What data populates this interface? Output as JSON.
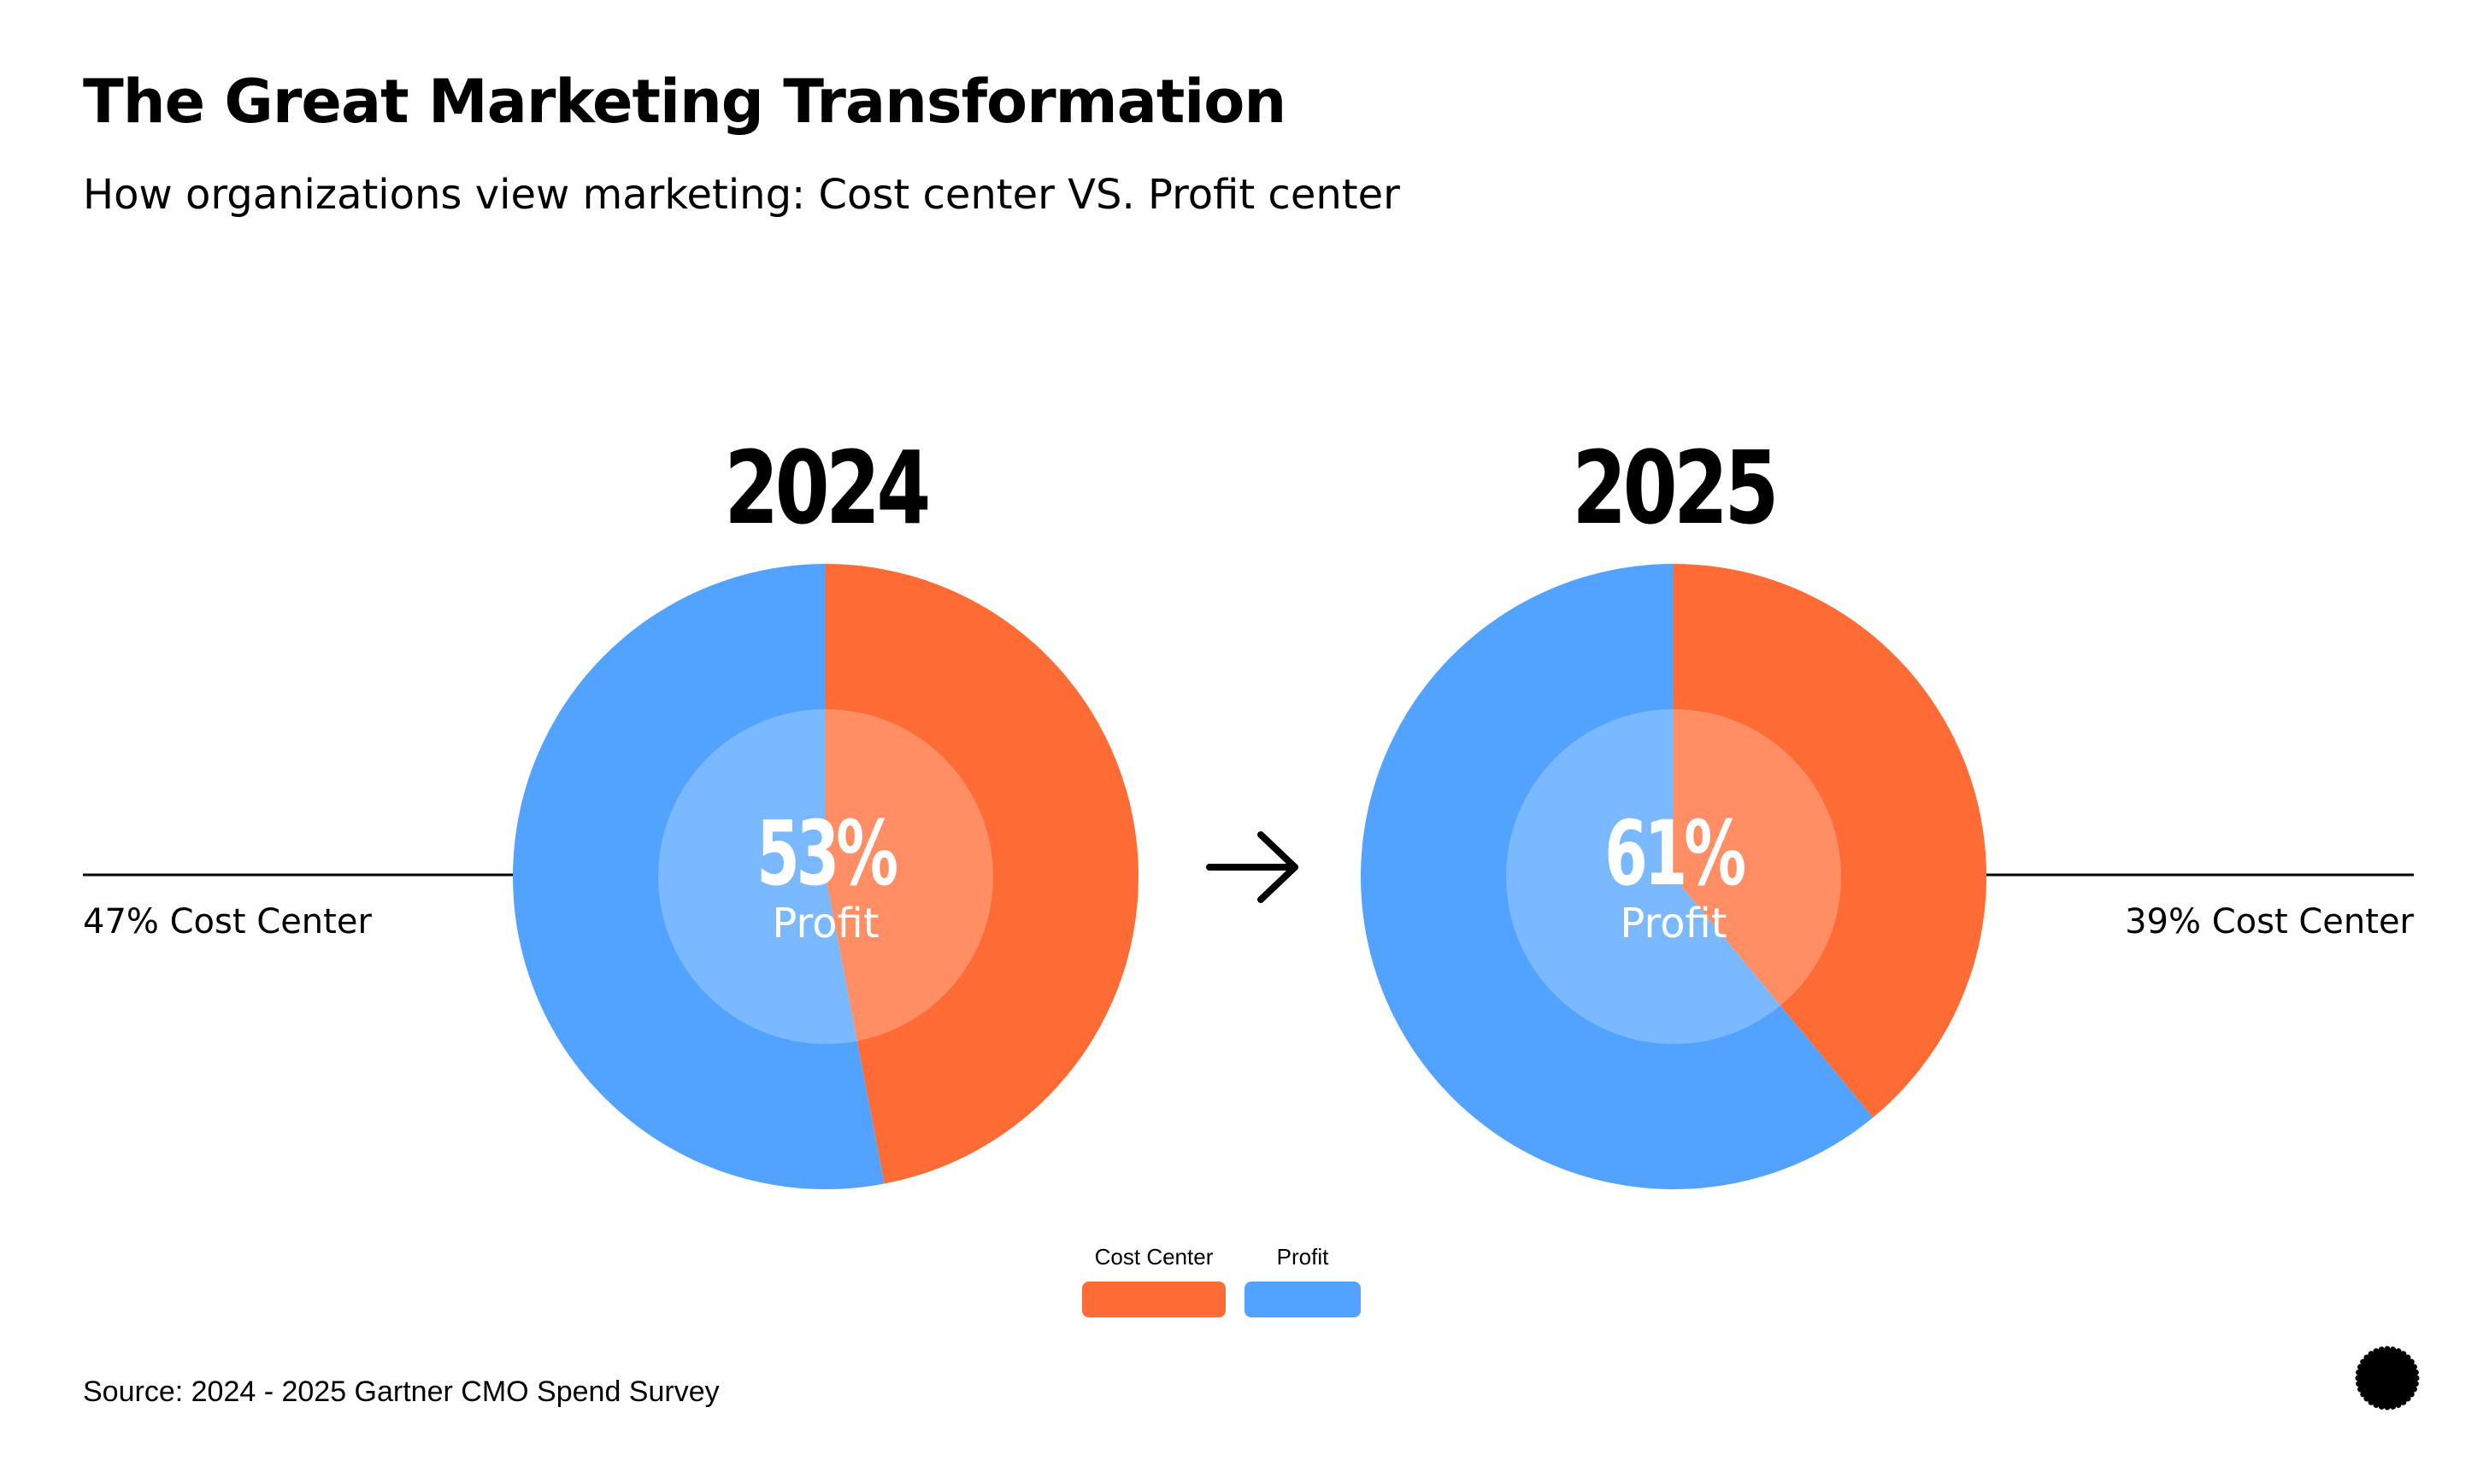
{
  "page": {
    "title": "The Great Marketing Transformation",
    "subtitle": "How organizations view marketing: Cost center VS. Profit center",
    "source": "Source: 2024 - 2025 Gartner CMO Spend Survey",
    "arrow_icon": "right-arrow-icon",
    "logo_icon": "starburst-logo-icon"
  },
  "chart_data": [
    {
      "type": "pie",
      "title": "2024",
      "categories": [
        "Cost Center",
        "Profit"
      ],
      "values": [
        47,
        53
      ],
      "colors": [
        "#FF6B35",
        "#51A3FF"
      ],
      "center_value": "53%",
      "center_label": "Profit",
      "callout": "47% Cost Center"
    },
    {
      "type": "pie",
      "title": "2025",
      "categories": [
        "Cost Center",
        "Profit"
      ],
      "values": [
        39,
        61
      ],
      "colors": [
        "#FF6B35",
        "#51A3FF"
      ],
      "center_value": "61%",
      "center_label": "Profit",
      "callout": "39% Cost Center"
    }
  ],
  "legend": [
    {
      "label": "Cost Center",
      "color": "#FF6B35"
    },
    {
      "label": "Profit",
      "color": "#51A3FF"
    }
  ]
}
